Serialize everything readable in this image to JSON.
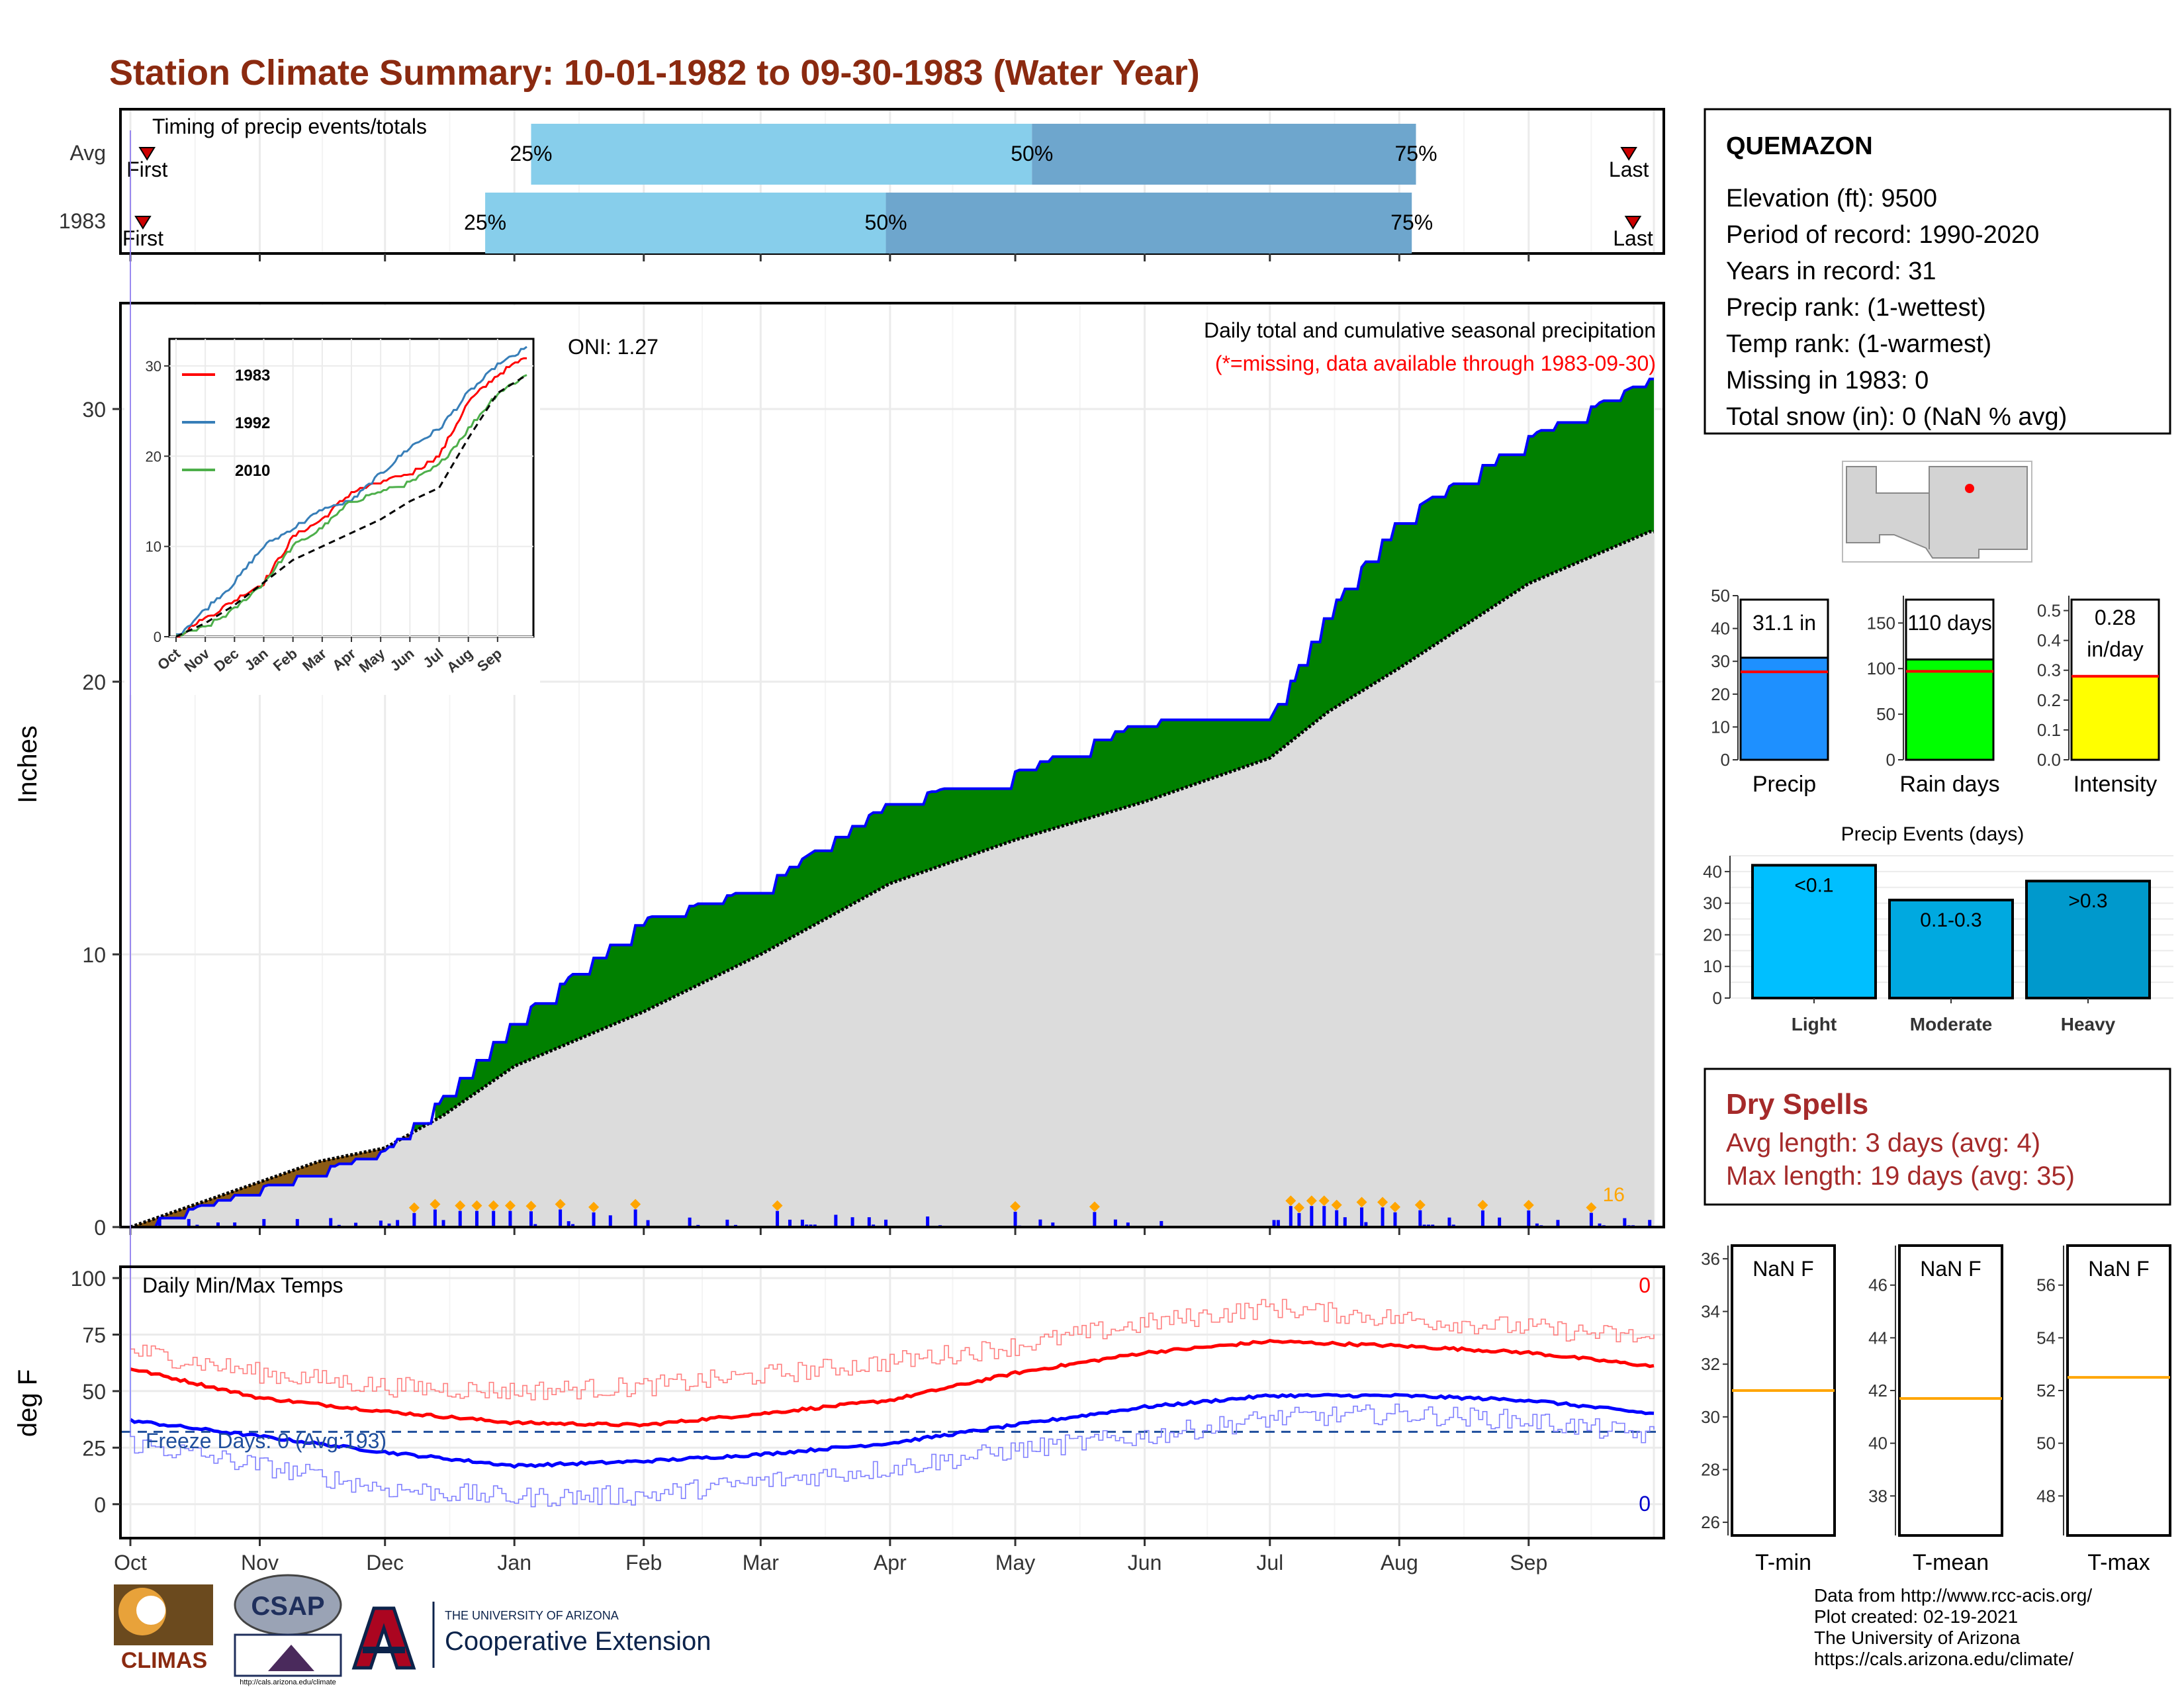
{
  "page_title": "Station Climate Summary: 10-01-1982 to 09-30-1983 (Water Year)",
  "colors": {
    "title": "#8b2a10",
    "light_blue": "#87ceeb",
    "mid_blue": "#6ea6cd",
    "green": "#008000",
    "brown": "#8b5a14",
    "grey_fill": "#dcdcdc",
    "bar_blue": "#0000ff",
    "orange": "#ffa500",
    "red": "#ff0000",
    "dry_red": "#a52a2a",
    "precip_bar": "#1e90ff",
    "rain_bar": "#00ff00",
    "intensity_bar": "#ffff00",
    "event_light": "#00bfff",
    "event_mod": "#00a9e0",
    "event_heavy": "#0099cc"
  },
  "timing": {
    "title": "Timing of precip events/totals",
    "rows": [
      "Avg",
      "1983"
    ],
    "first_label": "First",
    "last_label": "Last",
    "avg": {
      "first": "Oct 5",
      "p25": "Jan 5",
      "p50": "May 5",
      "p75": "Aug 5",
      "last": "Sep 25"
    },
    "y1983": {
      "first": "Oct 4",
      "p25": "Dec 25",
      "p50": "Mar 31",
      "p75": "Aug 4",
      "last": "Sep 26"
    },
    "pct_labels": [
      "25%",
      "50%",
      "75%"
    ]
  },
  "main": {
    "ylabel": "Inches",
    "annotation_1": "Daily total and cumulative seasonal precipitation",
    "annotation_2": "(*=missing, data available through 1983-09-30)",
    "oni": "ONI: 1.27",
    "extreme_count": "16",
    "y_ticks": [
      0,
      10,
      20,
      30
    ]
  },
  "inset": {
    "legend": [
      "1983",
      "1992",
      "2010"
    ],
    "x_ticks": [
      "Oct",
      "Nov",
      "Dec",
      "Jan",
      "Feb",
      "Mar",
      "Apr",
      "May",
      "Jun",
      "Jul",
      "Aug",
      "Sep"
    ],
    "y_ticks": [
      0,
      10,
      20,
      30
    ]
  },
  "temps": {
    "title": "Daily Min/Max Temps",
    "ylabel": "deg F",
    "freeze": "Freeze Days: 0 (Avg:193)",
    "max_count": "0",
    "min_count": "0",
    "y_ticks": [
      0,
      25,
      50,
      75,
      100
    ]
  },
  "x_months": [
    "Oct",
    "Nov",
    "Dec",
    "Jan",
    "Feb",
    "Mar",
    "Apr",
    "May",
    "Jun",
    "Jul",
    "Aug",
    "Sep"
  ],
  "station": {
    "name": "QUEMAZON",
    "lines": [
      "Elevation (ft): 9500",
      "Period of record: 1990-2020",
      "Years in record: 31",
      "Precip rank:  (1-wettest)",
      "Temp rank:  (1-warmest)",
      "Missing in 1983: 0",
      "Total snow (in): 0 (NaN % avg)"
    ]
  },
  "summary_bars": [
    {
      "label": "Precip",
      "value_text": "31.1 in",
      "value": 31.1,
      "avg": 26.8,
      "max": 50,
      "ticks": [
        0,
        10,
        20,
        30,
        40,
        50
      ]
    },
    {
      "label": "Rain days",
      "value_text": "110 days",
      "value": 110,
      "avg": 97,
      "max": 180,
      "ticks": [
        0,
        50,
        100,
        150
      ]
    },
    {
      "label": "Intensity",
      "value_text_1": "0.28",
      "value_text_2": "in/day",
      "value": 0.28,
      "avg": 0.28,
      "max": 0.55,
      "ticks": [
        0.0,
        0.1,
        0.2,
        0.3,
        0.4,
        0.5
      ]
    }
  ],
  "events": {
    "title": "Precip Events (days)",
    "categories": [
      "Light",
      "Moderate",
      "Heavy"
    ],
    "labels": [
      "<0.1",
      "0.1-0.3",
      ">0.3"
    ],
    "values": [
      42,
      31,
      37
    ],
    "ticks": [
      0,
      10,
      20,
      30,
      40
    ]
  },
  "dry": {
    "title": "Dry Spells",
    "line1": "Avg length: 3 days (avg: 4)",
    "line2": "Max length: 19 days (avg: 35)"
  },
  "temp_boxes": [
    {
      "label": "T-min",
      "value_text": "NaN F",
      "avg": 31,
      "ticks": [
        26,
        28,
        30,
        32,
        34,
        36
      ],
      "range": [
        25.5,
        36.5
      ]
    },
    {
      "label": "T-mean",
      "value_text": "NaN F",
      "avg": 41.7,
      "ticks": [
        38,
        40,
        42,
        44,
        46
      ],
      "range": [
        36.5,
        47.5
      ]
    },
    {
      "label": "T-max",
      "value_text": "NaN F",
      "avg": 52.5,
      "ticks": [
        48,
        50,
        52,
        54,
        56
      ],
      "range": [
        46.5,
        57.5
      ]
    }
  ],
  "footer": {
    "lines": [
      "Data from http://www.rcc-acis.org/",
      "Plot created: 02-19-2021",
      "The University of Arizona",
      "https://cals.arizona.edu/climate/"
    ],
    "climas": "CLIMAS",
    "csap": "CSAP",
    "csap_url": "http://cals.arizona.edu/climate",
    "ua_line1": "THE UNIVERSITY OF ARIZONA",
    "ua_line2": "Cooperative Extension"
  },
  "chart_data": [
    {
      "type": "area",
      "title": "",
      "xlabel": "",
      "ylabel": "Inches",
      "ylim": [
        0,
        33
      ],
      "x": [
        "Oct 1",
        "Nov 15",
        "Dec 1",
        "Dec 15",
        "Jan 1",
        "Feb 1",
        "Mar 1",
        "Apr 1",
        "May 1",
        "Jun 1",
        "Jul 1",
        "Jul 15",
        "Aug 1",
        "Sep 1",
        "Sep 30"
      ],
      "series": [
        {
          "values": [
            0,
            2.1,
            2.8,
            4.8,
            7.6,
            11.3,
            12.5,
            15.6,
            16.7,
            18.6,
            18.6,
            22.6,
            26.0,
            29.0,
            31.1
          ]
        },
        {
          "values": [
            0,
            2.4,
            2.9,
            4.1,
            5.9,
            7.9,
            10.0,
            12.6,
            14.2,
            15.6,
            17.2,
            18.9,
            20.5,
            23.6,
            25.5
          ]
        }
      ]
    },
    {
      "type": "line",
      "title": "",
      "ylim": [
        0,
        33
      ],
      "x": [
        "Oct",
        "Nov",
        "Dec",
        "Jan",
        "Feb",
        "Mar",
        "Apr",
        "May",
        "Jun",
        "Jul",
        "Aug",
        "Sep",
        "end"
      ],
      "series": [
        {
          "name": "1983",
          "values": [
            0,
            2,
            4,
            6,
            11,
            13,
            16,
            17,
            18,
            20,
            26,
            29,
            31
          ]
        },
        {
          "name": "1992",
          "values": [
            0,
            3,
            6,
            10,
            12,
            14,
            15,
            18,
            21,
            23,
            27,
            30,
            32
          ]
        },
        {
          "name": "2010",
          "values": [
            0,
            1,
            3,
            6,
            10,
            12,
            15,
            16,
            17,
            19,
            23,
            27,
            29
          ]
        },
        {
          "values": [
            0,
            1.5,
            3.5,
            6,
            8.5,
            10,
            11.5,
            13,
            15,
            16.5,
            22,
            27,
            29
          ]
        }
      ]
    },
    {
      "type": "line",
      "title": "",
      "ylabel": "deg F",
      "ylim": [
        -15,
        105
      ],
      "x": [
        "Oct",
        "Nov",
        "Dec",
        "Jan",
        "Feb",
        "Mar",
        "Apr",
        "May",
        "Jun",
        "Jul",
        "Aug",
        "Sep",
        "end"
      ],
      "series": [
        {
          "values": [
            60,
            47,
            41,
            36,
            35,
            40,
            46,
            58,
            67,
            72,
            70,
            67,
            61
          ]
        },
        {
          "values": [
            37,
            30,
            23,
            17,
            19,
            22,
            27,
            35,
            43,
            48,
            48,
            46,
            40
          ]
        },
        {
          "values": [
            68,
            58,
            52,
            50,
            52,
            57,
            63,
            70,
            80,
            87,
            82,
            78,
            73
          ]
        },
        {
          "values": [
            27,
            17,
            7,
            3,
            4,
            10,
            16,
            24,
            30,
            38,
            40,
            37,
            30
          ]
        }
      ]
    },
    {
      "type": "bar",
      "categories": [
        "Light",
        "Moderate",
        "Heavy"
      ],
      "values": [
        42,
        31,
        37
      ],
      "title": "Precip Events (days)",
      "ylim": [
        0,
        45
      ]
    }
  ]
}
